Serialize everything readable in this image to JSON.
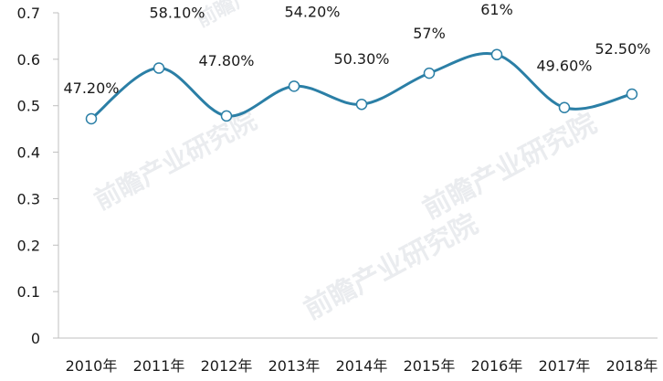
{
  "chart_data": {
    "type": "line",
    "categories": [
      "2010年",
      "2011年",
      "2012年",
      "2013年",
      "2014年",
      "2015年",
      "2016年",
      "2017年",
      "2018年"
    ],
    "values": [
      0.472,
      0.581,
      0.478,
      0.542,
      0.503,
      0.57,
      0.61,
      0.496,
      0.525
    ],
    "data_labels": [
      "47.20%",
      "58.10%",
      "47.80%",
      "54.20%",
      "50.30%",
      "57%",
      "61%",
      "49.60%",
      "52.50%"
    ],
    "y_ticks": [
      "0",
      "0.1",
      "0.2",
      "0.3",
      "0.4",
      "0.5",
      "0.6",
      "0.7"
    ],
    "ylim": [
      0,
      0.7
    ],
    "grid": false,
    "smooth": true,
    "line_color": "#2b7fa6",
    "marker_fill": "#ffffff",
    "watermark": "前瞻产业研究院"
  }
}
